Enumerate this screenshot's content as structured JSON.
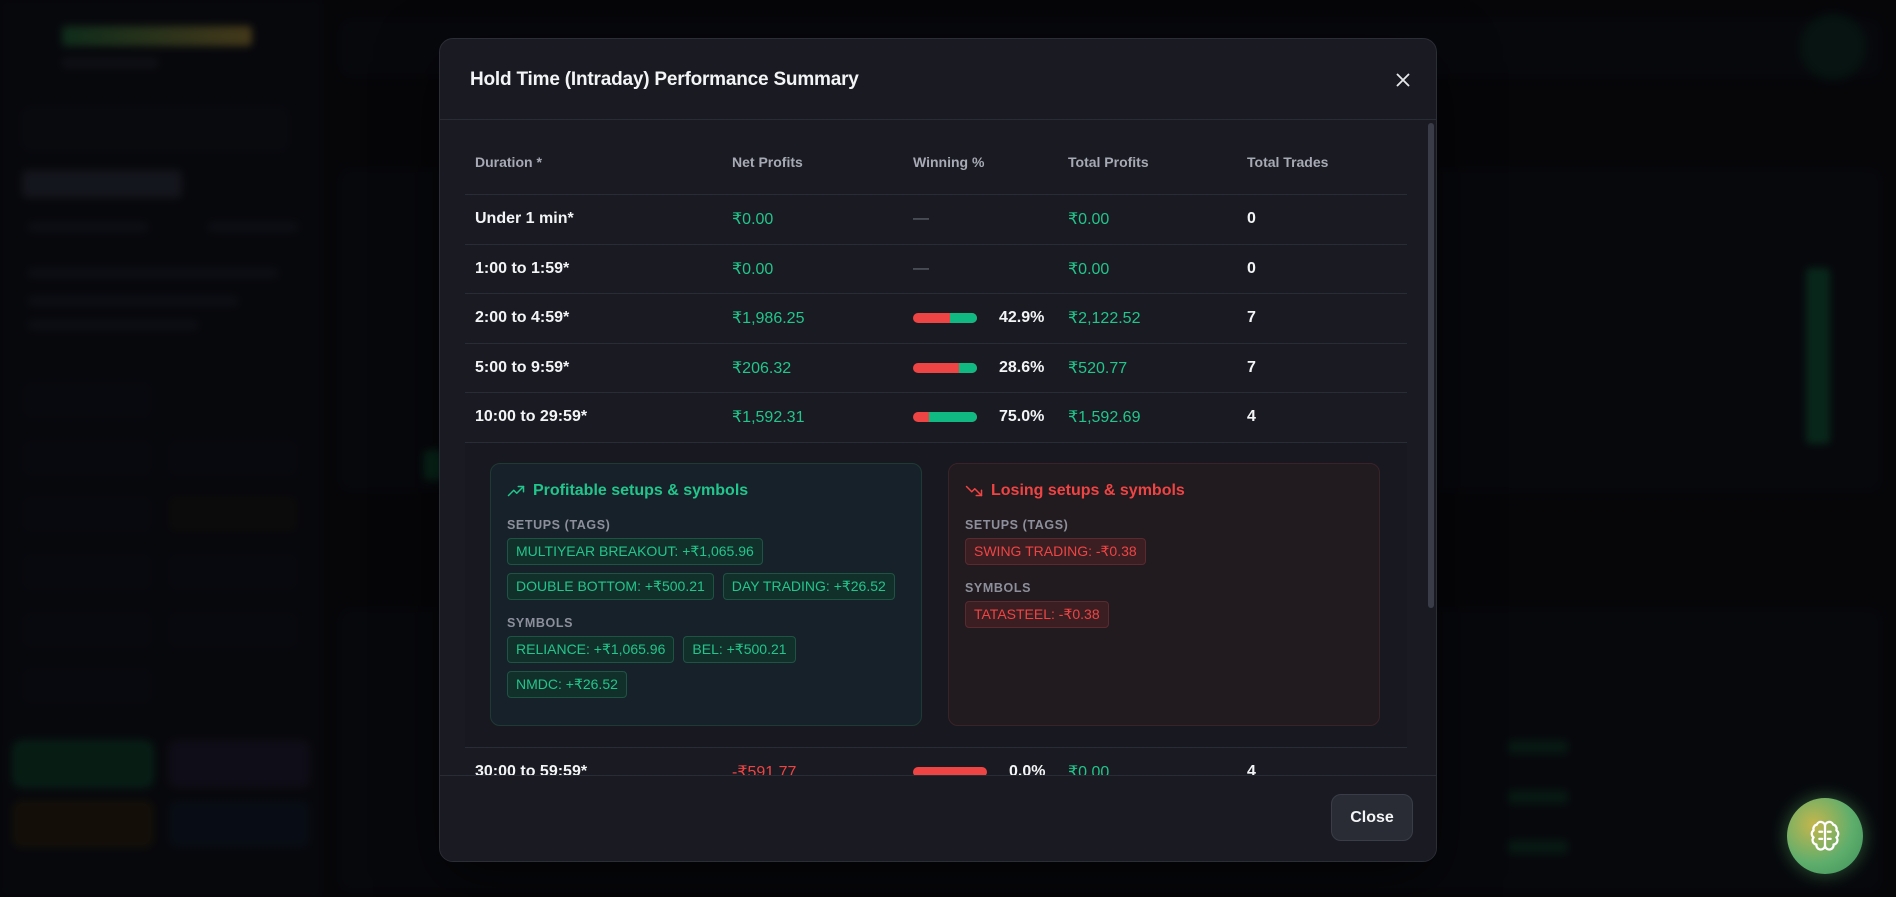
{
  "modal": {
    "title": "Hold Time (Intraday) Performance Summary",
    "close_label": "Close"
  },
  "table": {
    "headers": [
      "Duration *",
      "Net Profits",
      "Winning %",
      "Total Profits",
      "Total Trades"
    ],
    "rows": [
      {
        "duration": "Under 1 min*",
        "net": "₹0.00",
        "net_positive": true,
        "winning": "—",
        "win_fraction": null,
        "total": "₹0.00",
        "trades": "0"
      },
      {
        "duration": "1:00 to 1:59*",
        "net": "₹0.00",
        "net_positive": true,
        "winning": "—",
        "win_fraction": null,
        "total": "₹0.00",
        "trades": "0"
      },
      {
        "duration": "2:00 to 4:59*",
        "net": "₹1,986.25",
        "net_positive": true,
        "winning": "42.9%",
        "win_fraction": 0.429,
        "total": "₹2,122.52",
        "trades": "7"
      },
      {
        "duration": "5:00 to 9:59*",
        "net": "₹206.32",
        "net_positive": true,
        "winning": "28.6%",
        "win_fraction": 0.286,
        "total": "₹520.77",
        "trades": "7"
      },
      {
        "duration": "10:00 to 29:59*",
        "net": "₹1,592.31",
        "net_positive": true,
        "winning": "75.0%",
        "win_fraction": 0.75,
        "total": "₹1,592.69",
        "trades": "4"
      },
      {
        "duration": "30:00 to 59:59*",
        "net": "-₹591.77",
        "net_positive": false,
        "winning": "0.0%",
        "win_fraction": 0.0,
        "total": "₹0.00",
        "trades": "4"
      }
    ]
  },
  "details": {
    "profitable": {
      "title": "Profitable setups & symbols",
      "setups_label": "SETUPS (TAGS)",
      "setups": [
        "MULTIYEAR BREAKOUT: +₹1,065.96",
        "DOUBLE BOTTOM: +₹500.21",
        "DAY TRADING: +₹26.52"
      ],
      "symbols_label": "SYMBOLS",
      "symbols": [
        "RELIANCE: +₹1,065.96",
        "BEL: +₹500.21",
        "NMDC: +₹26.52"
      ]
    },
    "losing": {
      "title": "Losing setups & symbols",
      "setups_label": "SETUPS (TAGS)",
      "setups": [
        "SWING TRADING: -₹0.38"
      ],
      "symbols_label": "SYMBOLS",
      "symbols": [
        "TATASTEEL: -₹0.38"
      ]
    }
  },
  "colors": {
    "positive": "#22c58b",
    "negative": "#ef4444",
    "modal_bg": "#1a1b22"
  },
  "icons": {
    "close": "close-icon",
    "trend_up": "trending-up-icon",
    "trend_down": "trending-down-icon",
    "ai": "brain-icon"
  }
}
